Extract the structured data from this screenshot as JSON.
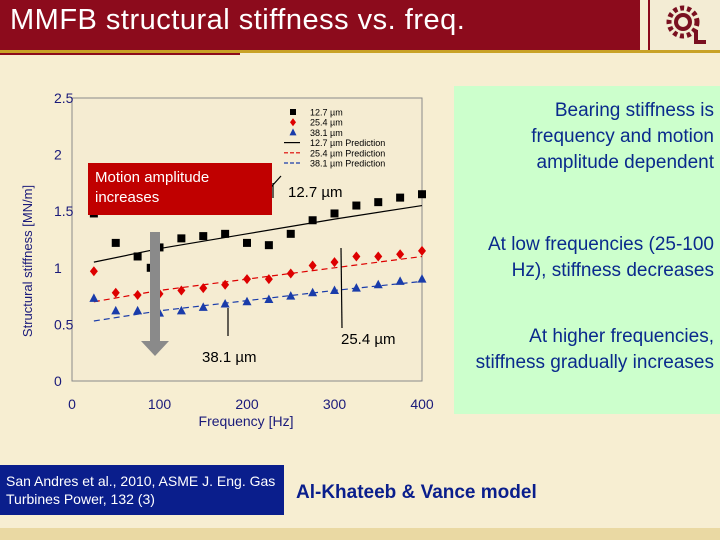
{
  "slide": {
    "title": "MMFB structural stiffness vs. freq.",
    "notes": [
      "Bearing stiffness is frequency and motion amplitude dependent",
      "At low frequencies (25-100 Hz), stiffness decreases",
      "At higher frequencies, stiffness gradually increases"
    ],
    "callout": "Motion amplitude increases",
    "reference": "San Andres et al., 2010, ASME J. Eng. Gas Turbines Power, 132 (3)",
    "model": "Al-Khateeb & Vance model"
  },
  "colors": {
    "title_bg": "#8c0b1c",
    "accent_gold": "#c9a227",
    "note_box": "#ccffcc",
    "note_text": "#0a2a8c",
    "callout_bg": "#c00000",
    "reference_bg": "#0a1e8c",
    "series_12_7": "#000000",
    "series_25_4": "#dd0000",
    "series_38_1": "#1a3caa"
  },
  "chart_data": {
    "type": "scatter",
    "xlabel": "Frequency [Hz]",
    "ylabel": "Structural stiffness [MN/m]",
    "xlim": [
      0,
      400
    ],
    "ylim": [
      0,
      2.5
    ],
    "xticks": [
      "0",
      "100",
      "200",
      "300",
      "400"
    ],
    "yticks": [
      "0",
      "0.5",
      "1",
      "1.5",
      "2",
      "2.5"
    ],
    "grid": false,
    "legend_position": "top-right",
    "annotations": [
      "12.7 µm",
      "25.4 µm",
      "38.1 µm"
    ],
    "series": [
      {
        "name": "12.7 µm",
        "marker": "square",
        "color": "#000000",
        "x": [
          25,
          50,
          75,
          90,
          100,
          125,
          150,
          175,
          200,
          225,
          250,
          275,
          300,
          325,
          350,
          375,
          400
        ],
        "y": [
          1.48,
          1.22,
          1.1,
          1.0,
          1.18,
          1.26,
          1.28,
          1.3,
          1.22,
          1.2,
          1.3,
          1.42,
          1.48,
          1.55,
          1.58,
          1.62,
          1.65
        ]
      },
      {
        "name": "25.4 µm",
        "marker": "diamond",
        "color": "#dd0000",
        "x": [
          25,
          50,
          75,
          100,
          125,
          150,
          175,
          200,
          225,
          250,
          275,
          300,
          325,
          350,
          375,
          400
        ],
        "y": [
          0.97,
          0.78,
          0.76,
          0.77,
          0.8,
          0.82,
          0.85,
          0.9,
          0.9,
          0.95,
          1.02,
          1.05,
          1.1,
          1.1,
          1.12,
          1.15
        ]
      },
      {
        "name": "38.1 µm",
        "marker": "triangle",
        "color": "#1a3caa",
        "x": [
          25,
          50,
          75,
          100,
          125,
          150,
          175,
          200,
          225,
          250,
          275,
          300,
          325,
          350,
          375,
          400
        ],
        "y": [
          0.73,
          0.62,
          0.62,
          0.6,
          0.62,
          0.65,
          0.68,
          0.7,
          0.72,
          0.75,
          0.78,
          0.8,
          0.82,
          0.85,
          0.88,
          0.9
        ]
      },
      {
        "name": "12.7 µm Prediction",
        "style": "line",
        "color": "#000000",
        "x": [
          25,
          100,
          200,
          300,
          400
        ],
        "y": [
          1.05,
          1.17,
          1.3,
          1.43,
          1.55
        ]
      },
      {
        "name": "25.4 µm Prediction",
        "style": "dashed",
        "color": "#dd0000",
        "x": [
          25,
          100,
          200,
          300,
          400
        ],
        "y": [
          0.7,
          0.8,
          0.9,
          1.0,
          1.1
        ]
      },
      {
        "name": "38.1 µm Prediction",
        "style": "dashed",
        "color": "#1a3caa",
        "x": [
          25,
          100,
          200,
          300,
          400
        ],
        "y": [
          0.53,
          0.62,
          0.71,
          0.8,
          0.88
        ]
      }
    ]
  }
}
